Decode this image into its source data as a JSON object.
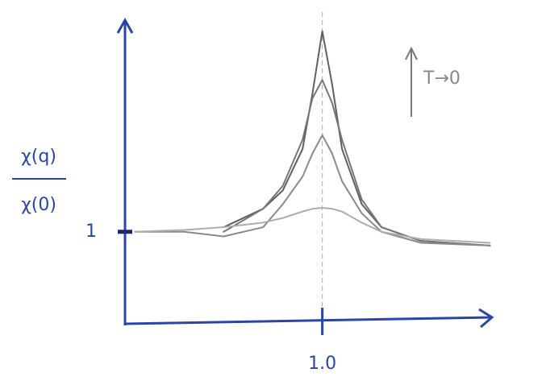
{
  "chart_data": {
    "type": "line",
    "ylabel_numerator": "χ(q)",
    "ylabel_denominator": "χ(0)",
    "annotation": "T→0",
    "x": [
      0.05,
      0.3,
      0.5,
      0.7,
      0.8,
      0.9,
      0.95,
      1.0,
      1.05,
      1.1,
      1.2,
      1.3,
      1.5,
      1.85
    ],
    "series": [
      {
        "color": "#606060",
        "values": [
          null,
          null,
          1.05,
          1.25,
          1.45,
          1.9,
          2.5,
          3.18,
          2.6,
          1.9,
          1.3,
          1.05,
          0.9,
          0.85
        ]
      },
      {
        "color": "#767676",
        "values": [
          null,
          null,
          1.0,
          1.25,
          1.5,
          2.0,
          2.45,
          2.65,
          2.4,
          2.0,
          1.35,
          1.05,
          0.9,
          0.85
        ]
      },
      {
        "color": "#8a8a8a",
        "values": [
          1.0,
          1.0,
          0.95,
          1.05,
          1.3,
          1.6,
          1.85,
          2.05,
          1.85,
          1.55,
          1.2,
          1.0,
          0.88,
          0.85
        ]
      },
      {
        "color": "#adadad",
        "values": [
          1.0,
          1.02,
          1.05,
          1.1,
          1.15,
          1.22,
          1.25,
          1.26,
          1.25,
          1.22,
          1.1,
          1.0,
          0.92,
          0.88
        ]
      }
    ],
    "xlim": [
      0,
      1.86
    ],
    "ylim": [
      0,
      3.3
    ],
    "xticks": [
      {
        "value": 1,
        "label": "1.0"
      }
    ],
    "yticks": [
      1
    ],
    "axis_color": "#2a45a8"
  }
}
